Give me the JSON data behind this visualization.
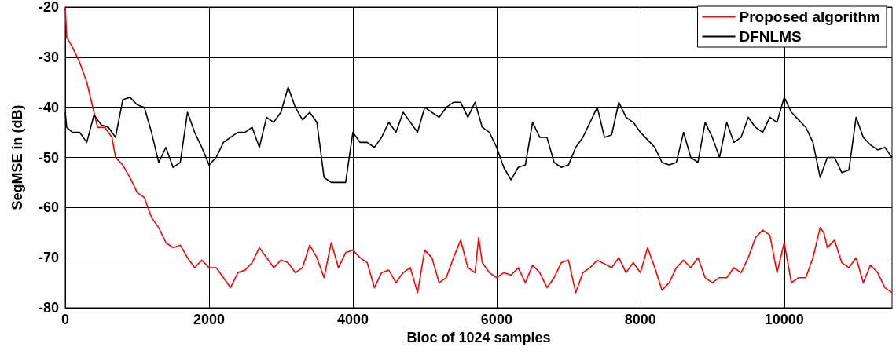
{
  "chart_data": {
    "type": "line",
    "xlabel": "Bloc of 1024 samples",
    "ylabel": "SegMSE in (dB)",
    "xlim": [
      0,
      11500
    ],
    "xticks": [
      0,
      2000,
      4000,
      6000,
      8000,
      10000
    ],
    "ylim": [
      -80,
      -20
    ],
    "yticks": [
      -80,
      -70,
      -60,
      -50,
      -40,
      -30,
      -20
    ],
    "grid": true,
    "legend": "top right",
    "marker": "none",
    "line_style": "solid",
    "series": [
      {
        "name": "Proposed algorithm",
        "color": "#ff0000",
        "x": [
          0,
          20,
          100,
          200,
          300,
          400,
          450,
          550,
          650,
          700,
          800,
          900,
          1000,
          1100,
          1200,
          1300,
          1400,
          1500,
          1600,
          1700,
          1800,
          1900,
          2000,
          2100,
          2200,
          2300,
          2400,
          2500,
          2600,
          2700,
          2800,
          2900,
          3000,
          3100,
          3200,
          3300,
          3400,
          3500,
          3600,
          3700,
          3800,
          3900,
          4000,
          4100,
          4200,
          4300,
          4400,
          4500,
          4600,
          4700,
          4800,
          4900,
          5000,
          5100,
          5200,
          5300,
          5400,
          5500,
          5600,
          5700,
          5750,
          5800,
          5900,
          6000,
          6100,
          6200,
          6300,
          6400,
          6500,
          6600,
          6700,
          6800,
          6900,
          7000,
          7100,
          7200,
          7300,
          7400,
          7600,
          7700,
          7800,
          7900,
          8000,
          8100,
          8200,
          8300,
          8400,
          8500,
          8600,
          8700,
          8800,
          8900,
          9000,
          9100,
          9200,
          9300,
          9400,
          9500,
          9600,
          9700,
          9800,
          9900,
          10000,
          10100,
          10200,
          10300,
          10400,
          10500,
          10550,
          10600,
          10700,
          10800,
          10900,
          11000,
          11100,
          11200,
          11300,
          11400,
          11500
        ],
        "values": [
          -20,
          -26,
          -28,
          -31,
          -35,
          -41,
          -44,
          -44,
          -46,
          -50,
          -51.5,
          -54,
          -57,
          -58,
          -62,
          -64,
          -67,
          -68,
          -67.5,
          -70,
          -72,
          -70.5,
          -72,
          -72,
          -74,
          -76,
          -73,
          -72.5,
          -71,
          -68,
          -70,
          -72,
          -70.5,
          -71,
          -73,
          -72,
          -67.5,
          -70,
          -74,
          -67,
          -72,
          -69,
          -68.5,
          -70,
          -71,
          -76,
          -73,
          -72.5,
          -75,
          -73,
          -72,
          -77,
          -68.5,
          -70,
          -75,
          -74,
          -70,
          -66.5,
          -72,
          -73,
          -66,
          -71,
          -73,
          -74,
          -73,
          -73.5,
          -72,
          -75,
          -71.5,
          -73,
          -76,
          -74,
          -71,
          -70.5,
          -77,
          -73,
          -72,
          -70.5,
          -72,
          -70,
          -73,
          -71,
          -73,
          -68,
          -72,
          -76.5,
          -75,
          -72,
          -70.5,
          -72,
          -70,
          -74,
          -75,
          -74,
          -74,
          -72,
          -73,
          -70,
          -66,
          -64.5,
          -65.5,
          -73,
          -67,
          -75,
          -74,
          -74,
          -70,
          -64,
          -65,
          -68,
          -66.5,
          -71,
          -72,
          -70,
          -75,
          -71.5,
          -73,
          -76,
          -77
        ]
      },
      {
        "name": "DFNLMS",
        "color": "#000000",
        "x": [
          0,
          20,
          100,
          200,
          300,
          400,
          500,
          600,
          700,
          800,
          900,
          1000,
          1100,
          1200,
          1300,
          1400,
          1500,
          1600,
          1700,
          1800,
          1900,
          2000,
          2100,
          2200,
          2300,
          2400,
          2500,
          2600,
          2700,
          2800,
          2900,
          3000,
          3100,
          3200,
          3300,
          3400,
          3500,
          3600,
          3700,
          3800,
          3900,
          4000,
          4100,
          4200,
          4300,
          4400,
          4500,
          4600,
          4700,
          4800,
          4900,
          5000,
          5100,
          5200,
          5300,
          5400,
          5500,
          5600,
          5700,
          5800,
          5900,
          6000,
          6100,
          6200,
          6300,
          6400,
          6500,
          6600,
          6700,
          6800,
          6900,
          7000,
          7100,
          7200,
          7300,
          7400,
          7500,
          7600,
          7700,
          7800,
          7900,
          8000,
          8100,
          8200,
          8300,
          8400,
          8500,
          8600,
          8700,
          8800,
          8900,
          9000,
          9100,
          9200,
          9300,
          9400,
          9500,
          9600,
          9700,
          9800,
          9900,
          10000,
          10100,
          10200,
          10300,
          10400,
          10500,
          10600,
          10700,
          10800,
          10900,
          11000,
          11100,
          11200,
          11300,
          11400,
          11500
        ],
        "values": [
          -41,
          -44,
          -45,
          -45,
          -47,
          -41.5,
          -43.5,
          -44,
          -46,
          -38.5,
          -38,
          -39.5,
          -40,
          -45,
          -51,
          -48,
          -52,
          -51,
          -41,
          -45,
          -48,
          -51.5,
          -50,
          -47,
          -46,
          -45,
          -45,
          -44,
          -48,
          -42,
          -43,
          -41,
          -36,
          -40,
          -42.5,
          -41,
          -43,
          -54,
          -55,
          -55,
          -55,
          -45,
          -47,
          -47,
          -48,
          -46,
          -43,
          -45,
          -41,
          -43,
          -45,
          -40,
          -41,
          -42,
          -40,
          -39,
          -39,
          -42,
          -39,
          -44,
          -45,
          -48,
          -52,
          -54.5,
          -52,
          -51.5,
          -43,
          -46,
          -46,
          -51,
          -52,
          -51.5,
          -48,
          -46,
          -43,
          -40,
          -46,
          -45.5,
          -39,
          -42,
          -43,
          -45,
          -46.5,
          -48,
          -51,
          -51.5,
          -51,
          -45,
          -50,
          -51,
          -43,
          -46,
          -50,
          -43,
          -47,
          -46,
          -42,
          -44,
          -45,
          -42,
          -43,
          -38,
          -41,
          -42.5,
          -44,
          -47,
          -54,
          -50,
          -50,
          -53,
          -52.5,
          -42,
          -46,
          -47.5,
          -48.5,
          -48,
          -50
        ]
      }
    ]
  }
}
